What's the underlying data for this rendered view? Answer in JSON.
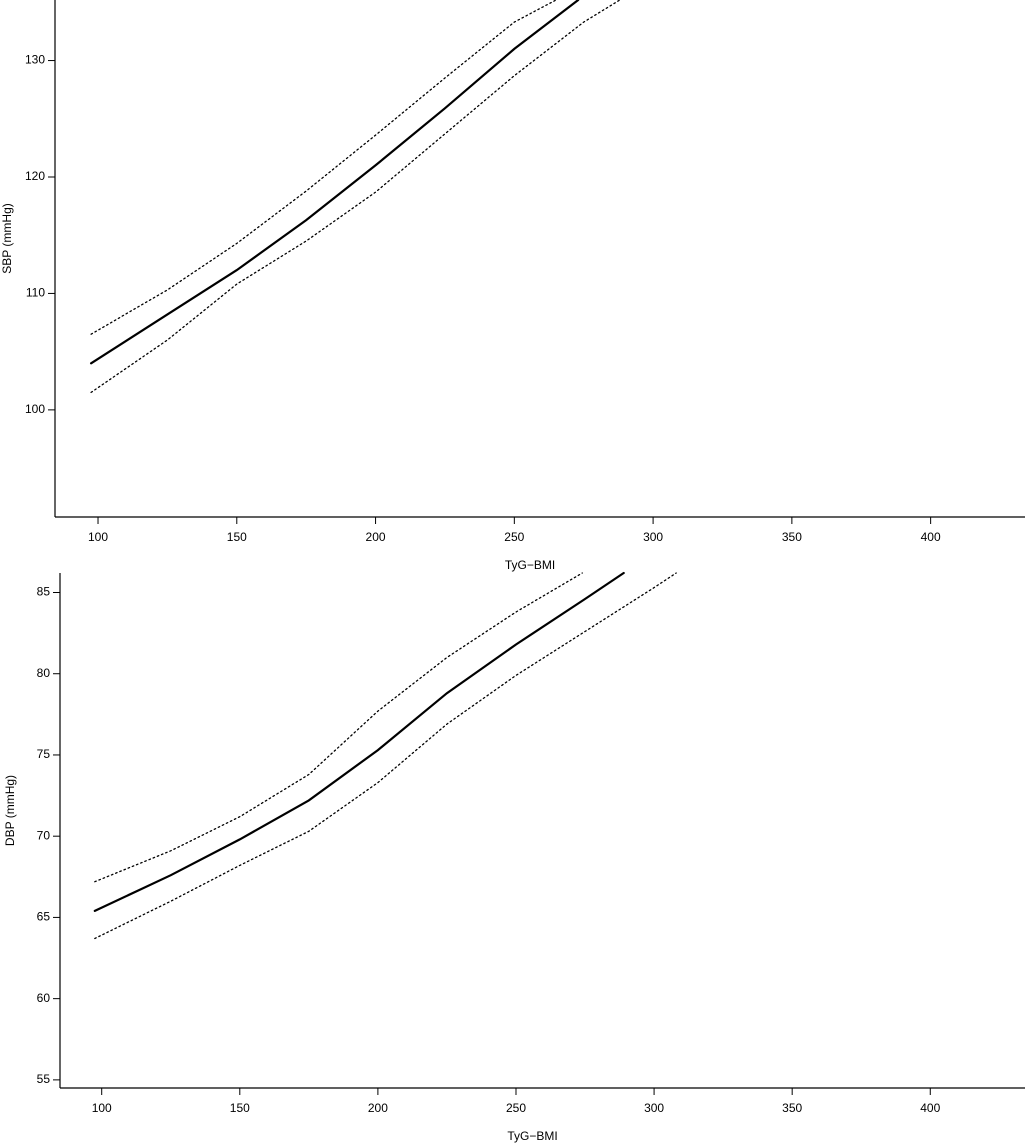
{
  "chart_data": [
    {
      "type": "line",
      "x_label": "TyG−BMI",
      "y_label": "SBP (mmHg)",
      "xlim": [
        84.5,
        434
      ],
      "ylim": [
        90.8,
        135.2
      ],
      "xticks": [
        100,
        150,
        200,
        250,
        300,
        350,
        400
      ],
      "yticks": [
        100,
        110,
        120,
        130
      ],
      "series": [
        {
          "color": "#000000",
          "style": "solid",
          "x": [
            97.5,
            125,
            150,
            175,
            200,
            225,
            250,
            273
          ],
          "values": [
            104,
            108.2,
            112,
            116.3,
            121,
            125.9,
            131,
            135.2
          ]
        },
        {
          "color": "#000000",
          "style": "dotted",
          "x": [
            97.5,
            125,
            150,
            175,
            200,
            225,
            250,
            265
          ],
          "values": [
            106.5,
            110.3,
            114.3,
            118.8,
            123.6,
            128.5,
            133.3,
            135.2
          ]
        },
        {
          "color": "#000000",
          "style": "dotted",
          "x": [
            97.5,
            125,
            150,
            175,
            200,
            225,
            250,
            275,
            288
          ],
          "values": [
            101.5,
            106,
            110.8,
            114.5,
            118.7,
            123.7,
            128.7,
            133.3,
            135.2
          ]
        }
      ]
    },
    {
      "type": "line",
      "x_label": "TyG−BMI",
      "y_label": "DBP (mmHg)",
      "xlim": [
        84.9,
        434.3
      ],
      "ylim": [
        54.5,
        86.2
      ],
      "xticks": [
        100,
        150,
        200,
        250,
        300,
        350,
        400
      ],
      "yticks": [
        55,
        60,
        65,
        70,
        75,
        80,
        85
      ],
      "series": [
        {
          "color": "#000000",
          "style": "solid",
          "x": [
            97.5,
            125,
            150,
            175,
            200,
            225,
            250,
            275,
            289
          ],
          "values": [
            65.4,
            67.6,
            69.8,
            72.2,
            75.3,
            78.8,
            81.8,
            84.6,
            86.2
          ]
        },
        {
          "color": "#000000",
          "style": "dotted",
          "x": [
            97.5,
            125,
            150,
            175,
            200,
            225,
            250,
            274
          ],
          "values": [
            67.2,
            69.1,
            71.2,
            73.8,
            77.7,
            81,
            83.8,
            86.2
          ]
        },
        {
          "color": "#000000",
          "style": "dotted",
          "x": [
            97.5,
            125,
            150,
            175,
            200,
            225,
            250,
            275,
            300,
            308
          ],
          "values": [
            63.7,
            66,
            68.2,
            70.3,
            73.3,
            76.9,
            79.9,
            82.6,
            85.3,
            86.2
          ]
        }
      ]
    }
  ]
}
